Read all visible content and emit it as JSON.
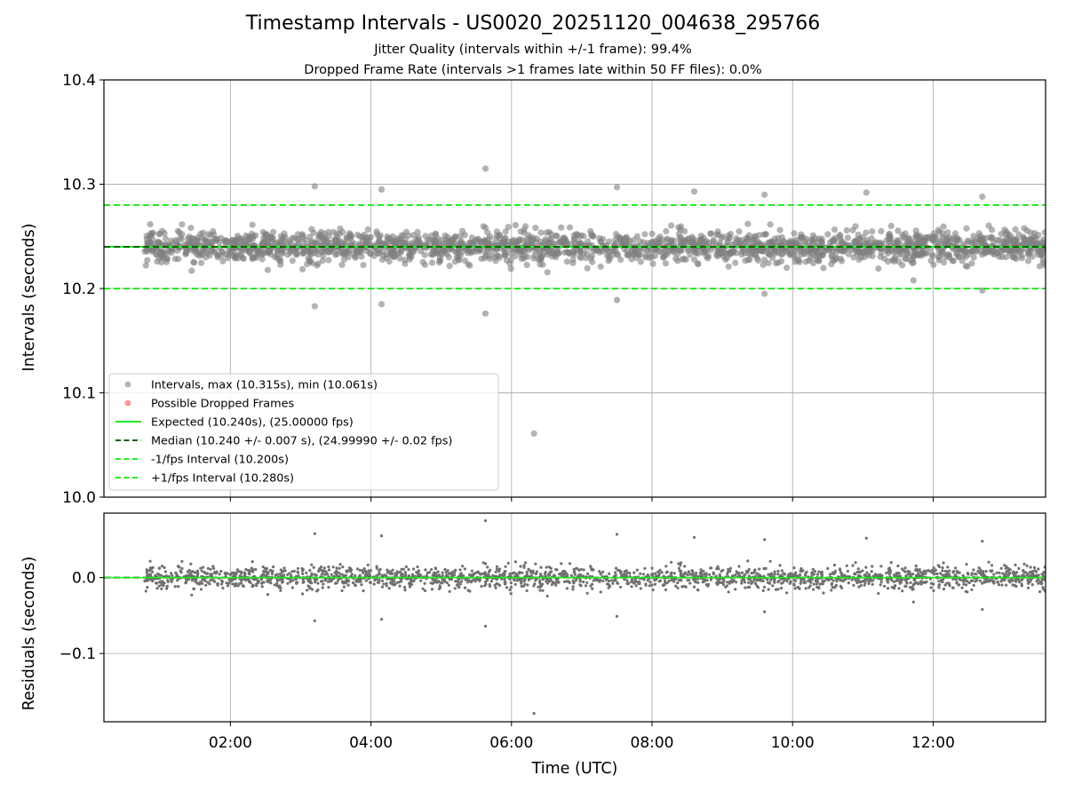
{
  "figure": {
    "title": "Timestamp Intervals - US0020_20251120_004638_295766",
    "subtitle_1": "Jitter Quality (intervals within +/-1 frame): 99.4%",
    "subtitle_2": "Dropped Frame Rate (intervals >1 frames late within 50 FF files): 0.0%"
  },
  "colors": {
    "intervals": "#808080",
    "dropped": "#ff4d4d",
    "expected": "#22ee22",
    "median": "#006400",
    "bounds": "#22ee22",
    "grid": "#b0b0b0",
    "residuals": "#707070"
  },
  "chart_data": [
    {
      "type": "scatter",
      "panel": "intervals",
      "xlabel": "",
      "ylabel": "Intervals (seconds)",
      "x_axis": "time UTC (hours)",
      "xlim": [
        0.2,
        13.6
      ],
      "ylim": [
        10.0,
        10.4
      ],
      "y_ticks": [
        10.0,
        10.1,
        10.2,
        10.3,
        10.4
      ],
      "y_tick_labels": [
        "10.0",
        "10.1",
        "10.2",
        "10.3",
        "10.4"
      ],
      "x_ticks": [
        2,
        4,
        6,
        8,
        10,
        12
      ],
      "grid": true,
      "legend_position": "lower-left",
      "legend": [
        {
          "label": "Intervals, max (10.315s), min (10.061s)",
          "kind": "marker",
          "color_key": "intervals"
        },
        {
          "label": "Possible Dropped Frames",
          "kind": "marker",
          "color_key": "dropped"
        },
        {
          "label": "Expected (10.240s), (25.00000 fps)",
          "kind": "solid",
          "color_key": "expected"
        },
        {
          "label": "Median (10.240 +/- 0.007 s), (24.99990 +/- 0.02 fps)",
          "kind": "dashed",
          "color_key": "median"
        },
        {
          "label": "-1/fps Interval (10.200s)",
          "kind": "dashed",
          "color_key": "bounds"
        },
        {
          "label": "+1/fps Interval (10.280s)",
          "kind": "dashed",
          "color_key": "bounds"
        }
      ],
      "reference_lines": {
        "expected": 10.24,
        "median": 10.24,
        "lower": 10.2,
        "upper": 10.28
      },
      "data_range": {
        "x_start": 0.78,
        "x_end": 13.6,
        "y_max": 10.315,
        "y_min": 10.061,
        "median": 10.24,
        "std": 0.007
      },
      "notable_points": [
        {
          "x": 5.63,
          "y": 10.315
        },
        {
          "x": 6.32,
          "y": 10.061
        },
        {
          "x": 5.63,
          "y": 10.176
        },
        {
          "x": 3.2,
          "y": 10.298
        },
        {
          "x": 3.2,
          "y": 10.183
        },
        {
          "x": 4.15,
          "y": 10.295
        },
        {
          "x": 4.15,
          "y": 10.185
        },
        {
          "x": 7.5,
          "y": 10.297
        },
        {
          "x": 7.5,
          "y": 10.189
        },
        {
          "x": 8.6,
          "y": 10.293
        },
        {
          "x": 9.6,
          "y": 10.29
        },
        {
          "x": 9.6,
          "y": 10.195
        },
        {
          "x": 11.05,
          "y": 10.292
        },
        {
          "x": 12.7,
          "y": 10.288
        },
        {
          "x": 12.7,
          "y": 10.198
        }
      ]
    },
    {
      "type": "scatter",
      "panel": "residuals",
      "xlabel": "Time (UTC)",
      "ylabel": "Residuals (seconds)",
      "xlim": [
        0.2,
        13.6
      ],
      "ylim": [
        -0.19,
        0.085
      ],
      "y_ticks": [
        -0.1,
        0.0
      ],
      "y_tick_labels": [
        "−0.1",
        "0.0"
      ],
      "x_ticks": [
        2,
        4,
        6,
        8,
        10,
        12
      ],
      "x_tick_labels": [
        "02:00",
        "04:00",
        "06:00",
        "08:00",
        "10:00",
        "12:00"
      ],
      "grid": true,
      "reference_lines": {
        "zero": 0.0
      },
      "notable_points": [
        {
          "x": 5.63,
          "y": 0.075
        },
        {
          "x": 6.32,
          "y": -0.179
        },
        {
          "x": 5.63,
          "y": -0.064
        },
        {
          "x": 3.2,
          "y": 0.058
        },
        {
          "x": 3.2,
          "y": -0.057
        },
        {
          "x": 4.15,
          "y": 0.055
        },
        {
          "x": 4.15,
          "y": -0.055
        },
        {
          "x": 7.5,
          "y": 0.057
        },
        {
          "x": 7.5,
          "y": -0.051
        },
        {
          "x": 8.6,
          "y": 0.053
        },
        {
          "x": 9.6,
          "y": 0.05
        },
        {
          "x": 9.6,
          "y": -0.045
        },
        {
          "x": 11.05,
          "y": 0.052
        },
        {
          "x": 12.7,
          "y": 0.048
        },
        {
          "x": 12.7,
          "y": -0.042
        }
      ]
    }
  ]
}
